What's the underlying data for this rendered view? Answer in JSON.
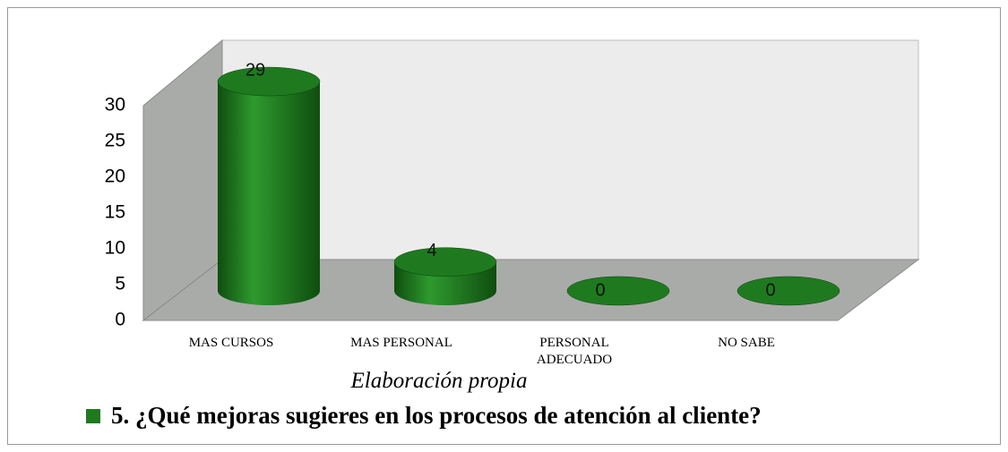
{
  "chart_data": {
    "type": "bar3d",
    "categories": [
      "MAS CURSOS",
      "MAS PERSONAL",
      "PERSONAL ADECUADO",
      "NO SABE"
    ],
    "series": [
      {
        "name": "5. ¿Qué mejoras sugieres en los procesos de atención al cliente?",
        "color": "#1f7a1f",
        "values": [
          29,
          4,
          0,
          0
        ]
      }
    ],
    "ylim": [
      0,
      30
    ],
    "yticks": [
      0,
      5,
      10,
      15,
      20,
      25,
      30
    ],
    "annotation": "Elaboración propia",
    "legend": "bottom"
  }
}
